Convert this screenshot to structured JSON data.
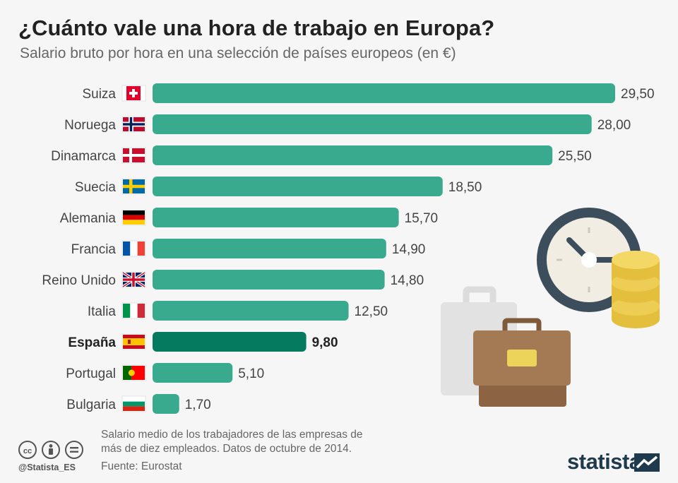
{
  "header": {
    "title": "¿Cuánto vale una hora de trabajo en Europa?",
    "subtitle": "Salario bruto por hora en una selección de países europeos (en €)"
  },
  "colors": {
    "bar": "#3aaa8f",
    "bar_highlight": "#067a5e"
  },
  "chart_data": {
    "type": "bar",
    "orientation": "horizontal",
    "categories": [
      "Suiza",
      "Noruega",
      "Dinamarca",
      "Suecia",
      "Alemania",
      "Francia",
      "Reino Unido",
      "Italia",
      "España",
      "Portugal",
      "Bulgaria"
    ],
    "values": [
      29.5,
      28.0,
      25.5,
      18.5,
      15.7,
      14.9,
      14.8,
      12.5,
      9.8,
      5.1,
      1.7
    ],
    "value_labels": [
      "29,50",
      "28,00",
      "25,50",
      "18,50",
      "15,70",
      "14,90",
      "14,80",
      "12,50",
      "9,80",
      "5,10",
      "1,70"
    ],
    "flags": [
      "switzerland-flag",
      "norway-flag",
      "denmark-flag",
      "sweden-flag",
      "germany-flag",
      "france-flag",
      "uk-flag",
      "italy-flag",
      "spain-flag",
      "portugal-flag",
      "bulgaria-flag"
    ],
    "highlight": "España",
    "xlim": [
      0,
      29.5
    ],
    "grid": false
  },
  "footer": {
    "note_line1": "Salario medio de los trabajadores de las empresas de",
    "note_line2": "más de diez empleados. Datos de octubre de 2014.",
    "source": "Fuente: Eurostat",
    "handle": "@Statista_ES",
    "brand": "statista",
    "cc_icons": [
      "cc-icon",
      "by-icon",
      "nd-icon"
    ]
  }
}
